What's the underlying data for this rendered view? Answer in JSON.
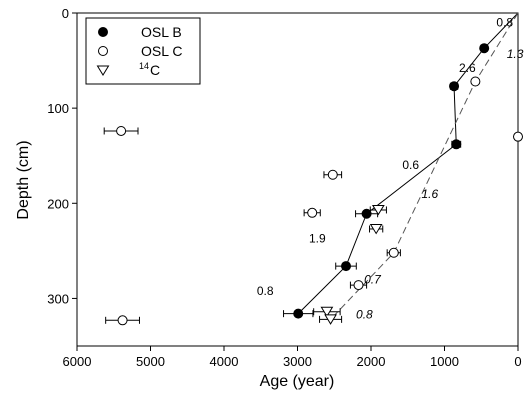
{
  "chart_data": {
    "type": "scatter",
    "xlabel": "Age (year)",
    "ylabel": "Depth (cm)",
    "xlim": [
      6000,
      0
    ],
    "ylim": [
      0,
      350
    ],
    "x_reversed": true,
    "y_reversed": true,
    "x_ticks": [
      6000,
      5000,
      4000,
      3000,
      2000,
      1000,
      0
    ],
    "y_ticks": [
      0,
      100,
      200,
      300
    ],
    "legend_position": "top-left",
    "series": [
      {
        "name": "OSL B",
        "marker": "filled-circle",
        "points": [
          {
            "x": 460,
            "y": 37,
            "xerr": 40
          },
          {
            "x": 870,
            "y": 77,
            "xerr": 50
          },
          {
            "x": 840,
            "y": 138,
            "xerr": 60
          },
          {
            "x": 2060,
            "y": 211,
            "xerr": 150
          },
          {
            "x": 2340,
            "y": 266,
            "xerr": 140
          },
          {
            "x": 2990,
            "y": 316,
            "xerr": 200
          }
        ]
      },
      {
        "name": "OSL C",
        "marker": "open-circle",
        "points": [
          {
            "x": 0,
            "y": 130,
            "xerr": 0
          },
          {
            "x": 580,
            "y": 72,
            "xerr": 0
          },
          {
            "x": 5400,
            "y": 124,
            "xerr": 230
          },
          {
            "x": 2520,
            "y": 170,
            "xerr": 120
          },
          {
            "x": 2800,
            "y": 210,
            "xerr": 110
          },
          {
            "x": 1690,
            "y": 252,
            "xerr": 90
          },
          {
            "x": 2170,
            "y": 286,
            "xerr": 110
          },
          {
            "x": 5380,
            "y": 323,
            "xerr": 230
          }
        ]
      },
      {
        "name": "C",
        "name_superscript": "14",
        "marker": "open-triangle-down",
        "points": [
          {
            "x": 1900,
            "y": 207,
            "xerr": 110
          },
          {
            "x": 1930,
            "y": 227,
            "xerr": 90
          },
          {
            "x": 2600,
            "y": 314,
            "xerr": 180
          },
          {
            "x": 2550,
            "y": 322,
            "xerr": 150
          }
        ]
      }
    ],
    "lines": [
      {
        "style": "solid",
        "points": [
          [
            0,
            0
          ],
          [
            460,
            37
          ],
          [
            870,
            77
          ],
          [
            840,
            138
          ],
          [
            2060,
            211
          ],
          [
            2340,
            266
          ],
          [
            2990,
            316
          ]
        ]
      },
      {
        "style": "dashed",
        "points": [
          [
            0,
            0
          ],
          [
            580,
            72
          ],
          [
            1690,
            252
          ],
          [
            2550,
            322
          ]
        ]
      }
    ],
    "annotations": [
      {
        "text": "0.8",
        "x": 180,
        "y": 10,
        "italic": false
      },
      {
        "text": "1.3",
        "x": 40,
        "y": 43,
        "italic": true
      },
      {
        "text": "2.6",
        "x": 690,
        "y": 58,
        "italic": false
      },
      {
        "text": "0.6",
        "x": 1460,
        "y": 160,
        "italic": false
      },
      {
        "text": "1.6",
        "x": 1200,
        "y": 190,
        "italic": true
      },
      {
        "text": "1.9",
        "x": 2730,
        "y": 237,
        "italic": false
      },
      {
        "text": "0.7",
        "x": 1980,
        "y": 280,
        "italic": true
      },
      {
        "text": "0.8",
        "x": 3440,
        "y": 292,
        "italic": false
      },
      {
        "text": "0.8",
        "x": 2090,
        "y": 317,
        "italic": true
      }
    ]
  }
}
